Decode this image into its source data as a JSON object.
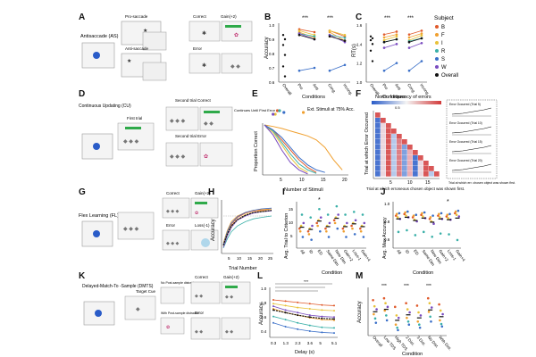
{
  "panel_letters": [
    "A",
    "B",
    "C",
    "D",
    "E",
    "F",
    "G",
    "H",
    "I",
    "J",
    "K",
    "L",
    "M"
  ],
  "subjects": {
    "title": "Subject",
    "entries": [
      {
        "name": "B",
        "color": "#e05a2b"
      },
      {
        "name": "F",
        "color": "#f0a030"
      },
      {
        "name": "I",
        "color": "#e8c23a"
      },
      {
        "name": "R",
        "color": "#3ab0a8"
      },
      {
        "name": "S",
        "color": "#3a6fc8"
      },
      {
        "name": "W",
        "color": "#7a4cc0"
      },
      {
        "name": "Overall",
        "color": "#111111"
      }
    ]
  },
  "panelA": {
    "task_name": "Antisaccade (AS)",
    "pro_label": "Pro-saccade",
    "anti_label": "Anti-saccade",
    "correct_label": "Correct",
    "error_label": "Error",
    "gain_label": "Gain(+2)"
  },
  "panelD": {
    "task_name": "Continuous Updating (CU)",
    "first_trial": "First trial",
    "second_correct": "Second trial Correct",
    "second_error": "Second trial Error",
    "continues": "Continues Until First Error"
  },
  "panelE": {
    "legend": "Ext. Stimuli at 75% Acc.",
    "ylabel": "Proportion Correct",
    "xlabel": "Number of Stimuli",
    "xticks": [
      "5",
      "10",
      "15",
      "20"
    ]
  },
  "panelF": {
    "title": "Norm. frequency of errors",
    "scale_max": "0.5",
    "ylabel": "Trial at which Error Occurred",
    "xlabel": "Trial at which erroneous chosen object was shown first.",
    "xticks": [
      "5",
      "10",
      "15"
    ],
    "inset_labels": [
      "Error Occurred (Trial 5)",
      "Error Occurred (Trial 10)",
      "Error Occurred (Trial 15)",
      "Error Occurred (Trial 20)"
    ],
    "inset_xlabel": "Trial at which err. chosen object was shown first."
  },
  "panelG": {
    "task_name": "Flex Learning (FL)",
    "correct_label": "Correct",
    "error_label": "Error",
    "gain_label": "Gain(+2)",
    "loss_label": "Loss(-1)"
  },
  "panelH": {
    "ylabel": "Accuracy",
    "xlabel": "Trial Number",
    "xticks": [
      "5",
      "10",
      "15",
      "20",
      "25"
    ]
  },
  "panelI": {
    "ylabel": "Avg. Trial to Criterion",
    "xlabel": "Condition",
    "yticks": [
      "5",
      "10",
      "15"
    ],
    "conditions": [
      "All",
      "ID",
      "ED",
      "Same Dim",
      "New Dim",
      "Gain+2",
      "Loss-1",
      "Gain+4"
    ],
    "sig": "*"
  },
  "panelJ": {
    "ylabel": "Avg. Max Accuracy",
    "xlabel": "Condition",
    "yticks": [
      "0.6",
      "0.8",
      "1.0"
    ],
    "conditions": [
      "All",
      "ID",
      "ED",
      "Same Dim",
      "New Dim",
      "Gain+2",
      "Loss-1",
      "Gain+4"
    ],
    "sig": "*"
  },
  "panelK": {
    "task_name": "Delayed-Match-To -Sample (DMTS)",
    "target_cue": "Target Cue",
    "correct_label": "Correct",
    "error_label": "Error",
    "gain_label": "Gain(+2)",
    "no_distractor": "No Post-sample distractor",
    "with_distractor": "With Post-sample distractor"
  },
  "panelL": {
    "ylabel": "Accuracy",
    "xlabel": "Delay (s)",
    "xticks": [
      "0.3",
      "1.3",
      "2.3",
      "3.6",
      "5",
      "5.1"
    ],
    "yticks": [
      "0.4",
      "0.6",
      "0.8",
      "1.0"
    ],
    "sig": "***"
  },
  "panelM": {
    "ylabel": "Accuracy",
    "xlabel": "Condition",
    "groups": [
      "Overall",
      "Low TDS",
      "High TDS",
      "2 Dist.",
      "3 Dist.",
      "No Dist.",
      "With Dist."
    ],
    "sig": "***"
  },
  "chart_data": [
    {
      "id": "B",
      "type": "line",
      "title": "",
      "xlabel": "Conditions",
      "ylabel": "Accuracy",
      "categories": [
        "Overall",
        "Pro",
        "Anti",
        "Cong.",
        "Incong."
      ],
      "ylim": [
        0.6,
        1.0
      ],
      "yticks": [
        "0.6",
        "0.7",
        "0.8",
        "0.9",
        "1.0"
      ],
      "annotations": [
        "***",
        "***"
      ],
      "overall_points": [
        0.93,
        0.9,
        0.86,
        0.79,
        0.71,
        0.64
      ],
      "series": [
        {
          "name": "B",
          "pro": 0.97,
          "anti": 0.95,
          "cong": 0.96,
          "incong": 0.92
        },
        {
          "name": "F",
          "pro": 0.95,
          "anti": 0.91,
          "cong": 0.95,
          "incong": 0.89
        },
        {
          "name": "I",
          "pro": 0.96,
          "anti": 0.93,
          "cong": 0.96,
          "incong": 0.93
        },
        {
          "name": "R",
          "pro": 0.94,
          "anti": 0.92,
          "cong": 0.93,
          "incong": 0.91
        },
        {
          "name": "S",
          "pro": 0.68,
          "anti": 0.7,
          "cong": 0.68,
          "incong": 0.72
        },
        {
          "name": "W",
          "pro": 0.94,
          "anti": 0.9,
          "cong": 0.93,
          "incong": 0.88
        },
        {
          "name": "Overall",
          "pro": 0.93,
          "anti": 0.9,
          "cong": 0.92,
          "incong": 0.89
        }
      ]
    },
    {
      "id": "C",
      "type": "line",
      "title": "",
      "xlabel": "Conditions",
      "ylabel": "RT(s)",
      "categories": [
        "Overall",
        "Pro",
        "Anti",
        "Cong.",
        "Incong."
      ],
      "ylim": [
        1.0,
        1.6
      ],
      "yticks": [
        "1.0",
        "1.2",
        "1.4",
        "1.6"
      ],
      "annotations": [
        "***",
        "***"
      ],
      "overall_points": [
        1.48,
        1.46,
        1.44,
        1.4,
        1.33,
        1.22
      ],
      "series": [
        {
          "name": "B",
          "pro": 1.5,
          "anti": 1.53,
          "cong": 1.5,
          "incong": 1.54
        },
        {
          "name": "F",
          "pro": 1.47,
          "anti": 1.5,
          "cong": 1.47,
          "incong": 1.51
        },
        {
          "name": "I",
          "pro": 1.44,
          "anti": 1.48,
          "cong": 1.44,
          "incong": 1.49
        },
        {
          "name": "R",
          "pro": 1.42,
          "anti": 1.45,
          "cong": 1.43,
          "incong": 1.46
        },
        {
          "name": "S",
          "pro": 1.12,
          "anti": 1.2,
          "cong": 1.12,
          "incong": 1.22
        },
        {
          "name": "W",
          "pro": 1.36,
          "anti": 1.4,
          "cong": 1.36,
          "incong": 1.41
        },
        {
          "name": "Overall",
          "pro": 1.42,
          "anti": 1.45,
          "cong": 1.42,
          "incong": 1.46
        }
      ]
    },
    {
      "id": "E",
      "type": "line",
      "xlabel": "Number of Stimuli",
      "ylabel": "Proportion Correct",
      "xlim": [
        1,
        20
      ],
      "ylim": [
        0,
        1
      ],
      "series": [
        {
          "name": "B",
          "x": [
            1,
            3,
            5,
            7,
            9,
            11,
            13
          ],
          "y": [
            1.0,
            0.9,
            0.7,
            0.5,
            0.3,
            0.15,
            0.05
          ]
        },
        {
          "name": "F",
          "x": [
            1,
            3,
            5,
            7,
            9,
            11,
            13,
            15,
            17,
            19
          ],
          "y": [
            1.0,
            0.97,
            0.93,
            0.88,
            0.83,
            0.78,
            0.7,
            0.55,
            0.3,
            0.1
          ]
        },
        {
          "name": "I",
          "x": [
            1,
            3,
            5,
            7,
            9,
            11
          ],
          "y": [
            1.0,
            0.85,
            0.6,
            0.35,
            0.15,
            0.05
          ]
        },
        {
          "name": "R",
          "x": [
            1,
            3,
            5,
            7,
            9,
            11,
            13
          ],
          "y": [
            1.0,
            0.88,
            0.65,
            0.42,
            0.22,
            0.1,
            0.03
          ]
        },
        {
          "name": "S",
          "x": [
            1,
            3,
            5,
            7,
            9,
            11,
            13,
            15
          ],
          "y": [
            1.0,
            0.9,
            0.75,
            0.55,
            0.35,
            0.2,
            0.1,
            0.05
          ]
        },
        {
          "name": "W",
          "x": [
            1,
            3,
            5,
            7,
            9,
            11
          ],
          "y": [
            1.0,
            0.8,
            0.5,
            0.25,
            0.1,
            0.02
          ]
        }
      ],
      "ext_stimuli_75": [
        {
          "name": "B",
          "x": 4
        },
        {
          "name": "F",
          "x": 10
        },
        {
          "name": "I",
          "x": 3.5
        },
        {
          "name": "R",
          "x": 4.5
        },
        {
          "name": "S",
          "x": 5.5
        },
        {
          "name": "W",
          "x": 3
        }
      ]
    },
    {
      "id": "H",
      "type": "line",
      "xlabel": "Trial Number",
      "ylabel": "Accuracy",
      "xlim": [
        1,
        25
      ],
      "ylim": [
        0.3,
        1.0
      ],
      "series": [
        {
          "name": "B",
          "x": [
            1,
            3,
            5,
            8,
            12,
            16,
            20,
            25
          ],
          "y": [
            0.4,
            0.55,
            0.68,
            0.78,
            0.84,
            0.87,
            0.88,
            0.9
          ]
        },
        {
          "name": "F",
          "x": [
            1,
            3,
            5,
            8,
            12,
            16,
            20,
            25
          ],
          "y": [
            0.42,
            0.6,
            0.72,
            0.8,
            0.85,
            0.88,
            0.89,
            0.9
          ]
        },
        {
          "name": "I",
          "x": [
            1,
            3,
            5,
            8,
            12,
            16,
            20,
            25
          ],
          "y": [
            0.38,
            0.55,
            0.66,
            0.75,
            0.82,
            0.85,
            0.87,
            0.88
          ]
        },
        {
          "name": "R",
          "x": [
            1,
            3,
            5,
            8,
            12,
            16,
            20,
            25
          ],
          "y": [
            0.35,
            0.48,
            0.58,
            0.66,
            0.72,
            0.76,
            0.78,
            0.8
          ]
        },
        {
          "name": "S",
          "x": [
            1,
            3,
            5,
            8,
            12,
            16,
            20,
            25
          ],
          "y": [
            0.4,
            0.58,
            0.7,
            0.79,
            0.85,
            0.88,
            0.9,
            0.91
          ]
        },
        {
          "name": "W",
          "x": [
            1,
            3,
            5,
            8,
            12,
            16,
            20,
            25
          ],
          "y": [
            0.36,
            0.52,
            0.64,
            0.74,
            0.8,
            0.84,
            0.86,
            0.87
          ]
        },
        {
          "name": "Overall",
          "x": [
            1,
            3,
            5,
            8,
            12,
            16,
            20,
            25
          ],
          "y": [
            0.39,
            0.55,
            0.66,
            0.75,
            0.81,
            0.85,
            0.86,
            0.88
          ]
        }
      ]
    },
    {
      "id": "I",
      "type": "scatter",
      "xlabel": "Condition",
      "ylabel": "Avg. Trial to Criterion",
      "categories": [
        "All",
        "ID",
        "ED",
        "Same Dim",
        "New Dim",
        "Gain+2",
        "Loss-1",
        "Gain+4"
      ],
      "ylim": [
        2,
        18
      ],
      "series": [
        {
          "name": "B",
          "values": [
            9,
            8,
            11,
            9,
            12,
            9,
            10,
            9
          ]
        },
        {
          "name": "F",
          "values": [
            8,
            7,
            10,
            8,
            11,
            8,
            9,
            8
          ]
        },
        {
          "name": "I",
          "values": [
            10,
            9,
            12,
            10,
            13,
            10,
            11,
            10
          ]
        },
        {
          "name": "R",
          "values": [
            14,
            13,
            16,
            14,
            17,
            14,
            15,
            14
          ]
        },
        {
          "name": "S",
          "values": [
            6,
            5,
            8,
            6,
            9,
            6,
            7,
            6
          ]
        },
        {
          "name": "W",
          "values": [
            11,
            10,
            13,
            11,
            14,
            11,
            12,
            11
          ]
        },
        {
          "name": "Overall",
          "values": [
            9.5,
            8.7,
            11.7,
            9.7,
            12.7,
            9.7,
            10.7,
            9.7
          ]
        }
      ]
    },
    {
      "id": "J",
      "type": "scatter",
      "xlabel": "Condition",
      "ylabel": "Avg. Max Accuracy",
      "categories": [
        "All",
        "ID",
        "ED",
        "Same Dim",
        "New Dim",
        "Gain+2",
        "Loss-1",
        "Gain+4"
      ],
      "ylim": [
        0.5,
        1.05
      ],
      "series": [
        {
          "name": "B",
          "values": [
            0.9,
            0.92,
            0.88,
            0.91,
            0.86,
            0.9,
            0.89,
            0.93
          ]
        },
        {
          "name": "F",
          "values": [
            0.92,
            0.94,
            0.9,
            0.93,
            0.88,
            0.92,
            0.91,
            0.95
          ]
        },
        {
          "name": "I",
          "values": [
            0.88,
            0.9,
            0.85,
            0.89,
            0.83,
            0.88,
            0.87,
            0.91
          ]
        },
        {
          "name": "R",
          "values": [
            0.7,
            0.72,
            0.66,
            0.7,
            0.64,
            0.68,
            0.67,
            0.6
          ]
        },
        {
          "name": "S",
          "values": [
            0.93,
            0.95,
            0.91,
            0.94,
            0.9,
            0.93,
            0.92,
            0.96
          ]
        },
        {
          "name": "W",
          "values": [
            0.86,
            0.88,
            0.83,
            0.87,
            0.8,
            0.86,
            0.85,
            0.89
          ]
        },
        {
          "name": "Overall",
          "values": [
            0.86,
            0.88,
            0.84,
            0.87,
            0.82,
            0.86,
            0.85,
            0.87
          ]
        }
      ]
    },
    {
      "id": "L",
      "type": "line",
      "xlabel": "Delay (s)",
      "ylabel": "Accuracy",
      "categories": [
        "0.3",
        "1.3",
        "2.3",
        "3.6",
        "5",
        "5.1"
      ],
      "ylim": [
        0.3,
        1.0
      ],
      "series": [
        {
          "name": "B",
          "values": [
            0.86,
            0.84,
            0.82,
            0.8,
            0.78,
            0.77
          ]
        },
        {
          "name": "F",
          "values": [
            0.72,
            0.66,
            0.62,
            0.58,
            0.55,
            0.54
          ]
        },
        {
          "name": "I",
          "values": [
            0.8,
            0.77,
            0.74,
            0.72,
            0.7,
            0.69
          ]
        },
        {
          "name": "R",
          "values": [
            0.6,
            0.55,
            0.5,
            0.46,
            0.43,
            0.42
          ]
        },
        {
          "name": "S",
          "values": [
            0.5,
            0.44,
            0.4,
            0.37,
            0.35,
            0.34
          ]
        },
        {
          "name": "W",
          "values": [
            0.76,
            0.7,
            0.66,
            0.62,
            0.6,
            0.59
          ]
        },
        {
          "name": "Overall",
          "values": [
            0.7,
            0.66,
            0.62,
            0.59,
            0.57,
            0.56
          ]
        }
      ]
    },
    {
      "id": "M",
      "type": "scatter",
      "xlabel": "Condition",
      "ylabel": "Accuracy",
      "categories": [
        "Overall",
        "Low TDS",
        "High TDS",
        "2 Dist.",
        "3 Dist.",
        "No Dist.",
        "With Dist."
      ],
      "ylim": [
        0.3,
        1.0
      ],
      "series": [
        {
          "name": "B",
          "values": [
            0.85,
            0.88,
            0.74,
            0.8,
            0.76,
            0.88,
            0.78
          ]
        },
        {
          "name": "F",
          "values": [
            0.62,
            0.68,
            0.45,
            0.56,
            0.5,
            0.66,
            0.52
          ]
        },
        {
          "name": "I",
          "values": [
            0.75,
            0.8,
            0.6,
            0.7,
            0.65,
            0.8,
            0.68
          ]
        },
        {
          "name": "R",
          "values": [
            0.55,
            0.6,
            0.4,
            0.5,
            0.45,
            0.58,
            0.46
          ]
        },
        {
          "name": "S",
          "values": [
            0.48,
            0.52,
            0.36,
            0.45,
            0.4,
            0.5,
            0.42
          ]
        },
        {
          "name": "W",
          "values": [
            0.7,
            0.74,
            0.56,
            0.65,
            0.6,
            0.73,
            0.62
          ]
        },
        {
          "name": "Overall",
          "values": [
            0.66,
            0.7,
            0.52,
            0.61,
            0.56,
            0.69,
            0.58
          ]
        }
      ]
    }
  ]
}
